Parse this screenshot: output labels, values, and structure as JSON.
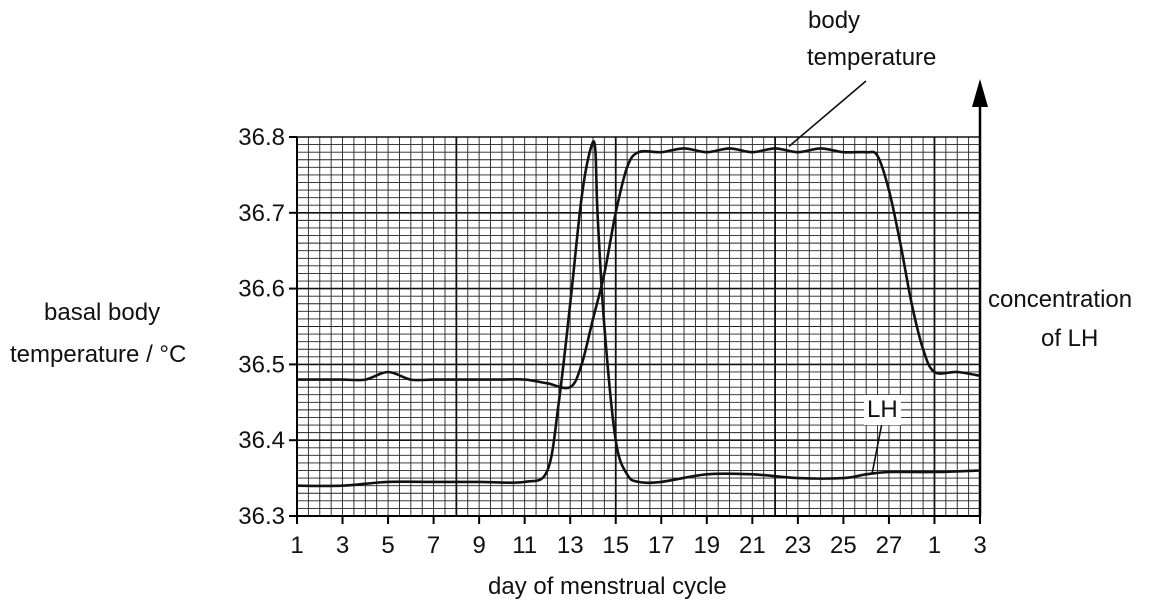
{
  "chart_data": {
    "type": "line",
    "title": "",
    "xlabel": "day of menstrual cycle",
    "ylabel_left_line1": "basal body",
    "ylabel_left_line2": "temperature / °C",
    "ylabel_right_line1": "concentration",
    "ylabel_right_line2": "of LH",
    "x_tick_labels": [
      "1",
      "3",
      "5",
      "7",
      "9",
      "11",
      "13",
      "15",
      "17",
      "19",
      "21",
      "23",
      "25",
      "27",
      "1",
      "3"
    ],
    "y_ticks": [
      36.3,
      36.4,
      36.5,
      36.6,
      36.7,
      36.8
    ],
    "y_tick_labels": [
      "36.3",
      "36.4",
      "36.5",
      "36.6",
      "36.7",
      "36.8"
    ],
    "ylim": [
      36.3,
      36.8
    ],
    "xlim": [
      1,
      31
    ],
    "grid": true,
    "series": [
      {
        "name": "body temperature",
        "x": [
          1,
          2,
          3,
          4,
          5,
          6,
          7,
          8,
          9,
          10,
          11,
          12,
          13,
          13.5,
          14,
          14.5,
          15,
          15.5,
          16,
          17,
          18,
          19,
          20,
          21,
          22,
          23,
          24,
          25,
          26,
          26.5,
          27,
          27.5,
          28,
          28.5,
          29,
          30,
          31
        ],
        "y": [
          36.48,
          36.48,
          36.48,
          36.48,
          36.49,
          36.48,
          36.48,
          36.48,
          36.48,
          36.48,
          36.48,
          36.475,
          36.47,
          36.5,
          36.56,
          36.62,
          36.7,
          36.76,
          36.78,
          36.78,
          36.785,
          36.78,
          36.785,
          36.78,
          36.785,
          36.78,
          36.785,
          36.78,
          36.78,
          36.775,
          36.73,
          36.66,
          36.58,
          36.52,
          36.49,
          36.49,
          36.485
        ]
      },
      {
        "name": "LH",
        "x": [
          1,
          3,
          5,
          7,
          9,
          11,
          12,
          12.5,
          13,
          13.5,
          13.9,
          14.1,
          14.2,
          14.5,
          15,
          15.5,
          16,
          17,
          19,
          21,
          23,
          25,
          26,
          27,
          29,
          31
        ],
        "y": [
          36.34,
          36.34,
          36.345,
          36.345,
          36.345,
          36.345,
          36.36,
          36.45,
          36.58,
          36.72,
          36.785,
          36.785,
          36.7,
          36.55,
          36.4,
          36.355,
          36.345,
          36.345,
          36.355,
          36.355,
          36.35,
          36.35,
          36.355,
          36.358,
          36.358,
          36.36
        ]
      }
    ],
    "annotations": [
      "body temperature",
      "LH"
    ],
    "annotation_body_line1": "body",
    "annotation_body_line2": "temperature",
    "annotation_lh": "LH"
  }
}
